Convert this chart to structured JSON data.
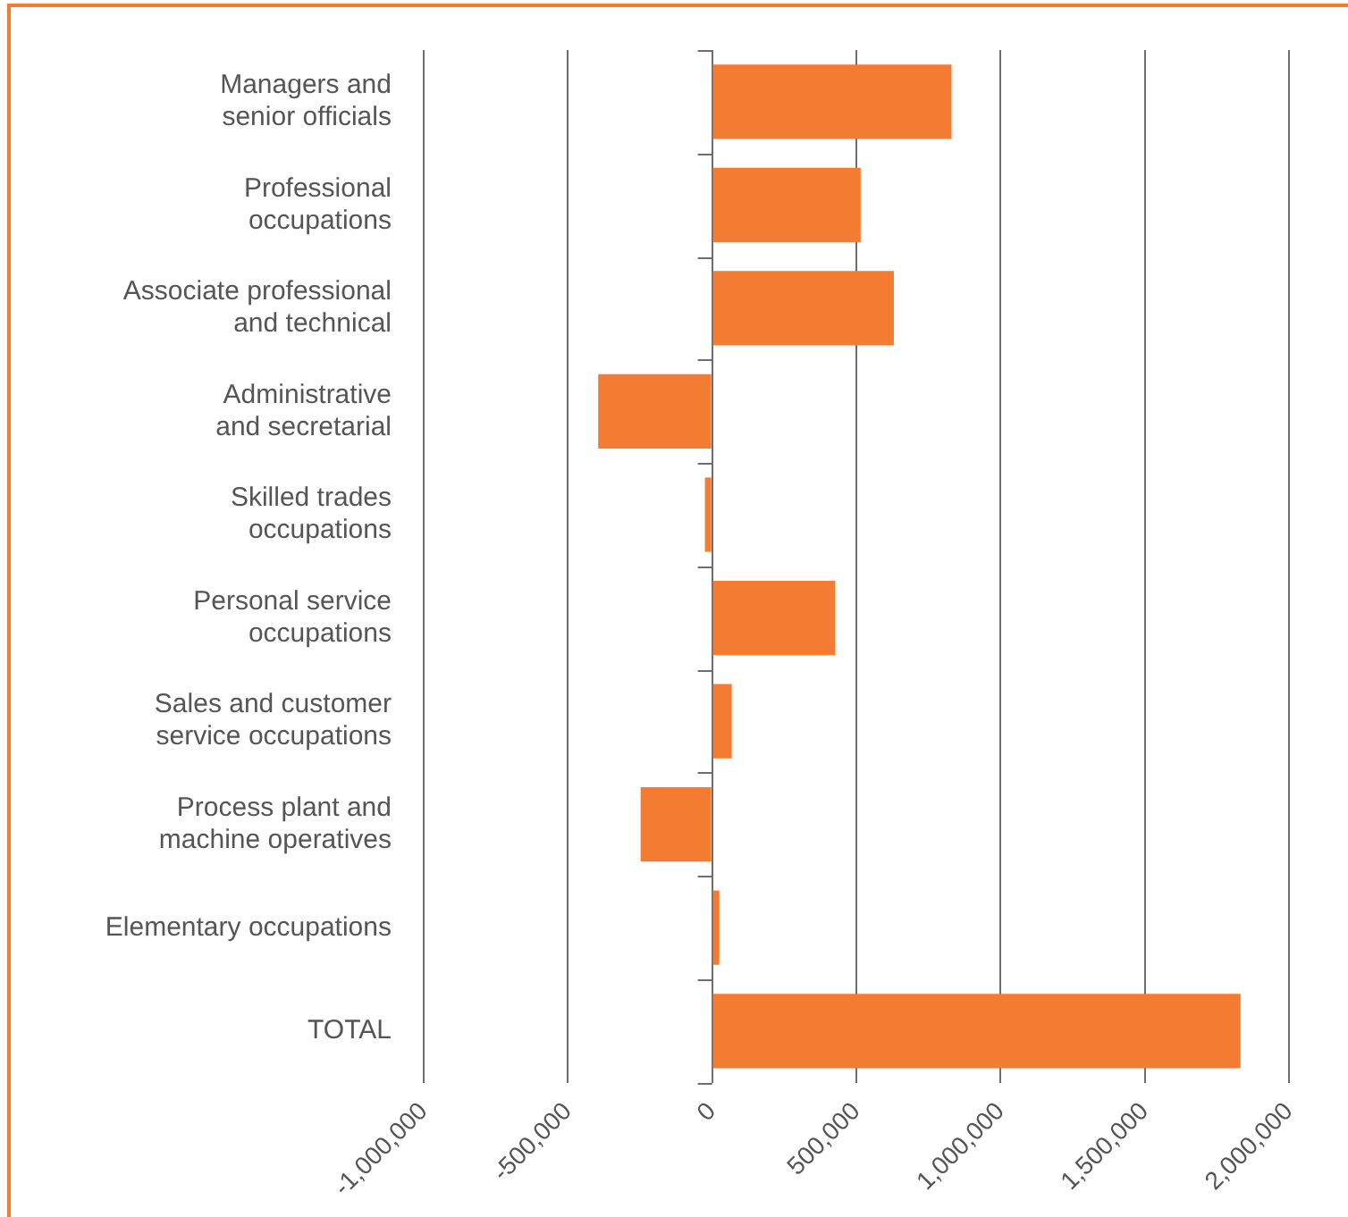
{
  "chart_data": {
    "type": "bar",
    "orientation": "horizontal",
    "categories": [
      "Managers and\nsenior officials",
      "Professional\noccupations",
      "Associate professional\nand technical",
      "Administrative\nand secretarial",
      "Skilled trades\noccupations",
      "Personal service\noccupations",
      "Sales and customer\nservice occupations",
      "Process plant and\nmachine operatives",
      "Elementary occupations",
      "TOTAL"
    ],
    "values": [
      830000,
      515000,
      630000,
      -395000,
      -25000,
      427000,
      68000,
      -248000,
      25000,
      1832000
    ],
    "color": "#f47b32",
    "xlim": [
      -1000000,
      2000000
    ],
    "xticks": [
      {
        "value": -1000000,
        "label": "-1,000,000"
      },
      {
        "value": -500000,
        "label": "-500,000"
      },
      0,
      {
        "value": 500000,
        "label": "500,000"
      },
      {
        "value": 1000000,
        "label": "1,000,000"
      },
      {
        "value": 1500000,
        "label": "1,500,000"
      },
      {
        "value": 2000000,
        "label": "2,000,000"
      }
    ],
    "grid": "x",
    "legend": false
  }
}
